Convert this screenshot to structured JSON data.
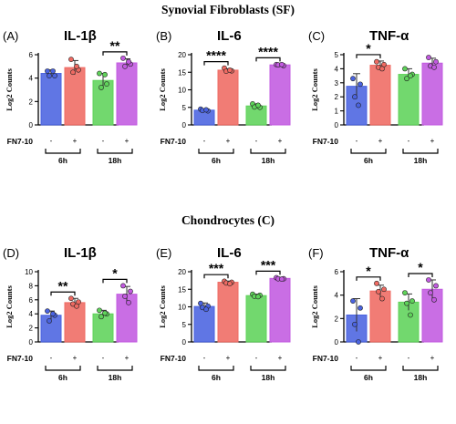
{
  "figure": {
    "section_titles": [
      "Synovial Fibroblasts (SF)",
      "Chondrocytes (C)"
    ]
  },
  "treatment": {
    "label": "FN7-10",
    "minus": "-",
    "plus": "+",
    "groups": [
      "6h",
      "18h"
    ]
  },
  "colors": {
    "blue": "#4a63e0",
    "red": "#ef6a62",
    "green": "#5fd35a",
    "purple": "#c25ae0"
  },
  "chart_data": [
    {
      "type": "bar",
      "panel": "(A)",
      "title": "IL-1β",
      "section": "Synovial Fibroblasts (SF)",
      "ylabel": "Log2 Counts",
      "ylim": [
        0,
        6
      ],
      "yticks": [
        0,
        2,
        4,
        6
      ],
      "categories": [
        "6h -",
        "6h +",
        "18h -",
        "18h +"
      ],
      "values": [
        4.4,
        4.9,
        3.8,
        5.3
      ],
      "errors": [
        0.3,
        0.6,
        0.6,
        0.35
      ],
      "points": [
        [
          4.6,
          4.2,
          4.2,
          4.6
        ],
        [
          5.6,
          4.7,
          4.5,
          5.0
        ],
        [
          4.4,
          3.5,
          3.2,
          4.3
        ],
        [
          5.7,
          5.2,
          5.0,
          5.4
        ]
      ],
      "significance": [
        {
          "from": 2,
          "to": 3,
          "label": "**"
        }
      ]
    },
    {
      "type": "bar",
      "panel": "(B)",
      "title": "IL-6",
      "section": "Synovial Fibroblasts (SF)",
      "ylabel": "Log2 Counts",
      "ylim": [
        0,
        20
      ],
      "yticks": [
        0,
        5,
        10,
        15,
        20
      ],
      "categories": [
        "6h -",
        "6h +",
        "18h -",
        "18h +"
      ],
      "values": [
        4.2,
        15.6,
        5.4,
        17.1
      ],
      "errors": [
        0.3,
        0.4,
        0.6,
        0.2
      ],
      "points": [
        [
          4.5,
          4.0,
          4.1,
          4.3
        ],
        [
          16.2,
          15.4,
          15.3,
          15.6
        ],
        [
          6.0,
          5.0,
          5.1,
          5.6
        ],
        [
          17.2,
          16.9,
          17.1,
          17.2
        ]
      ],
      "significance": [
        {
          "from": 0,
          "to": 1,
          "label": "****"
        },
        {
          "from": 2,
          "to": 3,
          "label": "****"
        }
      ]
    },
    {
      "type": "bar",
      "panel": "(C)",
      "title": "TNF-α",
      "section": "Synovial Fibroblasts (SF)",
      "ylabel": "Log2 Counts",
      "ylim": [
        0,
        5
      ],
      "yticks": [
        0,
        1,
        2,
        3,
        4,
        5
      ],
      "categories": [
        "6h -",
        "6h +",
        "18h -",
        "18h +"
      ],
      "values": [
        2.75,
        4.25,
        3.6,
        4.4
      ],
      "errors": [
        0.9,
        0.3,
        0.4,
        0.35
      ],
      "points": [
        [
          3.3,
          2.9,
          2.0,
          1.4
        ],
        [
          4.5,
          4.3,
          4.1,
          4.0
        ],
        [
          4.0,
          3.6,
          3.3,
          3.5
        ],
        [
          4.8,
          4.5,
          4.2,
          4.1
        ]
      ],
      "significance": [
        {
          "from": 0,
          "to": 1,
          "label": "*"
        }
      ]
    },
    {
      "type": "bar",
      "panel": "(D)",
      "title": "IL-1β",
      "section": "Chondrocytes (C)",
      "ylabel": "Log2 Counts",
      "ylim": [
        0,
        10
      ],
      "yticks": [
        0,
        2,
        4,
        6,
        8,
        10
      ],
      "categories": [
        "6h -",
        "6h +",
        "18h -",
        "18h +"
      ],
      "values": [
        3.8,
        5.6,
        4.0,
        6.8
      ],
      "errors": [
        0.6,
        0.6,
        0.5,
        1.1
      ],
      "points": [
        [
          4.4,
          3.8,
          3.0,
          4.0
        ],
        [
          6.2,
          5.7,
          5.4,
          5.1
        ],
        [
          4.5,
          4.0,
          3.6,
          4.1
        ],
        [
          8.0,
          7.2,
          6.5,
          5.6
        ]
      ],
      "significance": [
        {
          "from": 0,
          "to": 1,
          "label": "**"
        },
        {
          "from": 2,
          "to": 3,
          "label": "*"
        }
      ]
    },
    {
      "type": "bar",
      "panel": "(E)",
      "title": "IL-6",
      "section": "Chondrocytes (C)",
      "ylabel": "Log2 Counts",
      "ylim": [
        0,
        20
      ],
      "yticks": [
        0,
        5,
        10,
        15,
        20
      ],
      "categories": [
        "6h -",
        "6h +",
        "18h -",
        "18h +"
      ],
      "values": [
        10.1,
        17.0,
        13.2,
        18.1
      ],
      "errors": [
        1.0,
        0.35,
        0.4,
        0.25
      ],
      "points": [
        [
          11.0,
          10.2,
          9.8,
          9.3
        ],
        [
          17.3,
          17.0,
          16.8,
          16.6
        ],
        [
          13.6,
          13.3,
          13.0,
          12.9
        ],
        [
          18.3,
          18.0,
          18.0,
          17.9
        ]
      ],
      "significance": [
        {
          "from": 0,
          "to": 1,
          "label": "***"
        },
        {
          "from": 2,
          "to": 3,
          "label": "***"
        }
      ]
    },
    {
      "type": "bar",
      "panel": "(F)",
      "title": "TNF-α",
      "section": "Chondrocytes (C)",
      "ylabel": "Log2 Counts",
      "ylim": [
        0,
        6
      ],
      "yticks": [
        0,
        2,
        4,
        6
      ],
      "categories": [
        "6h -",
        "6h +",
        "18h -",
        "18h +"
      ],
      "values": [
        2.3,
        4.35,
        3.4,
        4.5
      ],
      "errors": [
        1.4,
        0.5,
        0.7,
        0.8
      ],
      "points": [
        [
          3.5,
          2.9,
          1.5,
          0.0
        ],
        [
          5.0,
          4.5,
          4.3,
          3.7
        ],
        [
          4.2,
          3.5,
          3.3,
          2.3
        ],
        [
          5.3,
          4.8,
          4.2,
          3.6
        ]
      ],
      "significance": [
        {
          "from": 0,
          "to": 1,
          "label": "*"
        },
        {
          "from": 2,
          "to": 3,
          "label": "*"
        }
      ]
    }
  ]
}
